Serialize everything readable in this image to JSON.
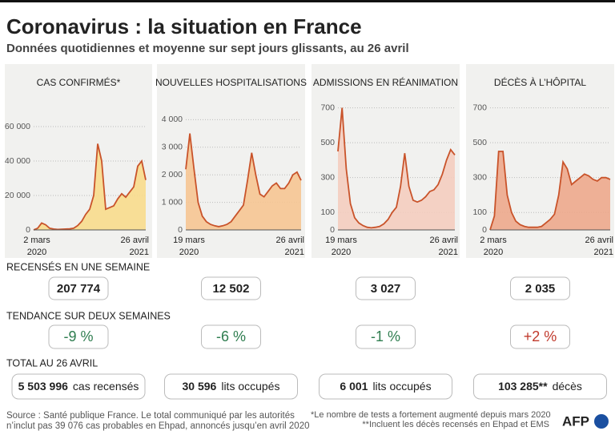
{
  "header": {
    "title": "Coronavirus : la situation en France",
    "subtitle": "Données quotidiennes et moyenne sur sept jours glissants, au 26 avril"
  },
  "chart_data": [
    {
      "type": "line",
      "title": "CAS CONFIRMÉS*",
      "color": "#c9532a",
      "fill": "#f8dc8c",
      "categories": [
        [
          "2 mars",
          "2020"
        ],
        null,
        null,
        null,
        null,
        null,
        null,
        null,
        null,
        null,
        null,
        null,
        null,
        null,
        null,
        null,
        null,
        null,
        null,
        null,
        null,
        null,
        null,
        null,
        null,
        null,
        null,
        null,
        [
          "26 avril",
          "2021"
        ]
      ],
      "values": [
        0,
        1000,
        4000,
        3000,
        1000,
        500,
        300,
        400,
        500,
        600,
        1000,
        2500,
        5000,
        9000,
        12000,
        20000,
        50000,
        40000,
        12000,
        13000,
        14000,
        18000,
        21000,
        19000,
        22000,
        25000,
        37000,
        40000,
        29000
      ],
      "ylim": [
        0,
        80000
      ],
      "yticks": [
        0,
        {
          "value": 20000,
          "label": "20 000"
        },
        {
          "value": 40000,
          "label": "40 000"
        },
        {
          "value": 60000,
          "label": "60 000"
        }
      ],
      "grid": true
    },
    {
      "type": "line",
      "title": "NOUVELLES HOSPITALISATIONS",
      "color": "#c9532a",
      "fill": "#f6c592",
      "categories": [
        [
          "19 mars",
          "2020"
        ],
        null,
        null,
        null,
        null,
        null,
        null,
        null,
        null,
        null,
        null,
        null,
        null,
        null,
        null,
        null,
        null,
        null,
        null,
        null,
        null,
        null,
        null,
        null,
        null,
        null,
        null,
        null,
        [
          "26 avril",
          "2021"
        ]
      ],
      "values": [
        2200,
        3500,
        2200,
        1000,
        500,
        300,
        200,
        150,
        120,
        150,
        200,
        300,
        500,
        700,
        900,
        1800,
        2800,
        2000,
        1300,
        1200,
        1400,
        1600,
        1700,
        1500,
        1500,
        1700,
        2000,
        2100,
        1800
      ],
      "ylim": [
        0,
        5000
      ],
      "yticks": [
        0,
        {
          "value": 1000,
          "label": "1 000"
        },
        {
          "value": 2000,
          "label": "2 000"
        },
        {
          "value": 3000,
          "label": "3 000"
        },
        {
          "value": 4000,
          "label": "4 000"
        }
      ],
      "grid": true
    },
    {
      "type": "line",
      "title": "ADMISSIONS EN RÉANIMATION",
      "color": "#c9532a",
      "fill": "#f4cdbf",
      "categories": [
        [
          "19 mars",
          "2020"
        ],
        null,
        null,
        null,
        null,
        null,
        null,
        null,
        null,
        null,
        null,
        null,
        null,
        null,
        null,
        null,
        null,
        null,
        null,
        null,
        null,
        null,
        null,
        null,
        null,
        null,
        null,
        null,
        [
          "26 avril",
          "2021"
        ]
      ],
      "values": [
        450,
        700,
        350,
        150,
        70,
        40,
        25,
        15,
        12,
        15,
        20,
        35,
        60,
        100,
        130,
        250,
        440,
        250,
        170,
        160,
        170,
        190,
        220,
        230,
        260,
        320,
        400,
        460,
        430
      ],
      "ylim": [
        0,
        790
      ],
      "yticks": [
        0,
        100,
        300,
        500,
        700
      ],
      "grid": true
    },
    {
      "type": "line",
      "title": "DÉCÈS À L’HÔPITAL",
      "color": "#c9532a",
      "fill": "#eda88c",
      "categories": [
        [
          "2 mars",
          "2020"
        ],
        null,
        null,
        null,
        null,
        null,
        null,
        null,
        null,
        null,
        null,
        null,
        null,
        null,
        null,
        null,
        null,
        null,
        null,
        null,
        null,
        null,
        null,
        null,
        null,
        null,
        null,
        null,
        [
          "26 avril",
          "2021"
        ]
      ],
      "values": [
        0,
        80,
        450,
        450,
        200,
        100,
        50,
        30,
        20,
        15,
        15,
        15,
        20,
        40,
        60,
        90,
        200,
        390,
        350,
        260,
        280,
        300,
        320,
        310,
        290,
        280,
        300,
        300,
        290
      ],
      "ylim": [
        0,
        790
      ],
      "yticks": [
        0,
        100,
        300,
        500,
        700
      ],
      "grid": true
    }
  ],
  "stats": {
    "weekly_label": "RECENSÉS EN UNE SEMAINE",
    "trend_label": "TENDANCE SUR DEUX SEMAINES",
    "total_label": "TOTAL AU 26 AVRIL",
    "weekly": [
      "207 774",
      "12 502",
      "3 027",
      "2 035"
    ],
    "trends": [
      {
        "text": "-9 %",
        "color": "#2e7d4f"
      },
      {
        "text": "-6 %",
        "color": "#2e7d4f"
      },
      {
        "text": "-1 %",
        "color": "#2e7d4f"
      },
      {
        "text": "+2 %",
        "color": "#c0392b"
      }
    ],
    "totals": [
      {
        "value": "5 503 996",
        "unit": "cas recensés"
      },
      {
        "value": "30 596",
        "unit": "lits occupés"
      },
      {
        "value": "6 001",
        "unit": "lits occupés"
      },
      {
        "value": "103 285**",
        "unit": "décès"
      }
    ]
  },
  "footer": {
    "source": [
      "Source : Santé publique France. Le total communiqué par les autorités",
      "n’inclut pas 39 076 cas probables en Ehpad, annoncés jusqu’en avril 2020"
    ],
    "notes": [
      "*Le nombre de tests a fortement augmenté depuis mars 2020",
      "**Incluent les décès recensés en Ehpad et EMS"
    ],
    "logo": "AFP"
  }
}
